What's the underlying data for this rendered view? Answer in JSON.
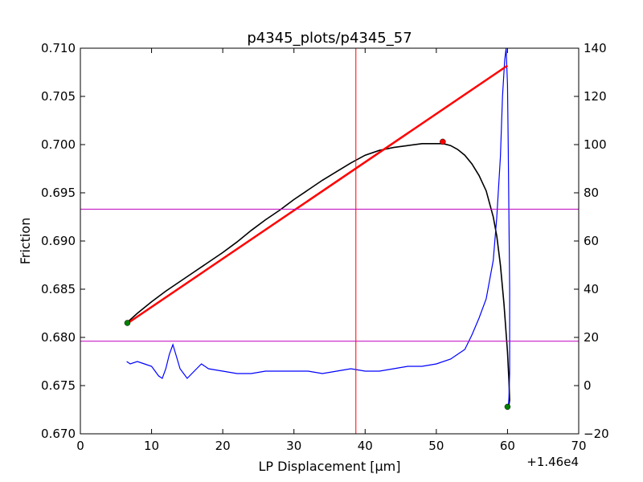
{
  "chart_data": {
    "type": "line",
    "title": "p4345_plots/p4345_57",
    "xlabel": "LP Displacement [μm]",
    "ylabel": "Friction",
    "x_offset_label": "+1.46e4",
    "xlim": [
      0,
      70
    ],
    "ylim": [
      0.67,
      0.71
    ],
    "y2lim": [
      -20,
      140
    ],
    "x_ticks": [
      0,
      10,
      20,
      30,
      40,
      50,
      60,
      70
    ],
    "y_ticks": [
      0.67,
      0.675,
      0.68,
      0.685,
      0.69,
      0.695,
      0.7,
      0.705,
      0.71
    ],
    "y_tick_labels": [
      "0.670",
      "0.675",
      "0.680",
      "0.685",
      "0.690",
      "0.695",
      "0.700",
      "0.705",
      "0.710"
    ],
    "y2_ticks": [
      -20,
      0,
      20,
      40,
      60,
      80,
      100,
      120,
      140
    ],
    "grid": false,
    "vertical_lines": [
      {
        "x": 38.7,
        "color": "#ff0000"
      }
    ],
    "horizontal_lines": [
      {
        "y": 0.6933,
        "color": "#bf00bf"
      },
      {
        "y": 0.6796,
        "color": "#bf00bf"
      }
    ],
    "fit_line": {
      "x": [
        6.7,
        60
      ],
      "y": [
        0.6815,
        0.7082
      ],
      "color": "#ff0000"
    },
    "series": [
      {
        "axis": "left",
        "color": "#000000",
        "x": [
          6.5,
          8,
          10,
          12,
          14,
          16,
          18,
          20,
          22,
          24,
          26,
          28,
          30,
          32,
          34,
          36,
          38,
          40,
          42,
          44,
          46,
          48,
          50,
          51,
          52,
          53,
          54,
          55,
          56,
          57,
          58,
          58.5,
          59,
          59.5,
          60,
          60.2,
          60.3,
          60.3,
          60.2,
          60.0
        ],
        "y": [
          0.6815,
          0.6825,
          0.6837,
          0.6848,
          0.6858,
          0.6868,
          0.6878,
          0.6888,
          0.6899,
          0.6911,
          0.6922,
          0.6932,
          0.6943,
          0.6953,
          0.6963,
          0.6972,
          0.6981,
          0.6989,
          0.6994,
          0.6997,
          0.6999,
          0.7001,
          0.7001,
          0.7001,
          0.6999,
          0.6995,
          0.6989,
          0.698,
          0.6968,
          0.6952,
          0.6925,
          0.6905,
          0.6875,
          0.6835,
          0.6785,
          0.6755,
          0.6735,
          0.6735,
          0.673,
          0.6728
        ]
      },
      {
        "axis": "right",
        "color": "#0000ff",
        "x": [
          6.5,
          7,
          8,
          9,
          10,
          11,
          11.5,
          12,
          12.5,
          13,
          13.5,
          14,
          15,
          16,
          17,
          18,
          20,
          22,
          24,
          26,
          28,
          30,
          32,
          34,
          36,
          38,
          40,
          42,
          44,
          46,
          48,
          50,
          52,
          53,
          54,
          55,
          56,
          57,
          58,
          58.5,
          59,
          59.3,
          59.6,
          59.8,
          60,
          60.1,
          60.2,
          60.3,
          60.3,
          60.3,
          60.2,
          60.1
        ],
        "y": [
          10,
          9,
          10,
          9,
          8,
          4,
          3,
          7,
          13,
          17,
          12,
          7,
          3,
          6,
          9,
          7,
          6,
          5,
          5,
          6,
          6,
          6,
          6,
          5,
          6,
          7,
          6,
          6,
          7,
          8,
          8,
          9,
          11,
          13,
          15,
          21,
          28,
          36,
          52,
          70,
          95,
          120,
          135,
          140,
          125,
          100,
          70,
          40,
          20,
          5,
          -5,
          -10
        ]
      }
    ],
    "markers": [
      {
        "x": 6.6,
        "y": 0.6815,
        "color": "#008000",
        "axis": "left"
      },
      {
        "x": 50.9,
        "y": 0.7003,
        "color": "#ff0000",
        "axis": "left"
      },
      {
        "x": 60.0,
        "y": 0.6728,
        "color": "#008000",
        "axis": "left"
      }
    ]
  }
}
